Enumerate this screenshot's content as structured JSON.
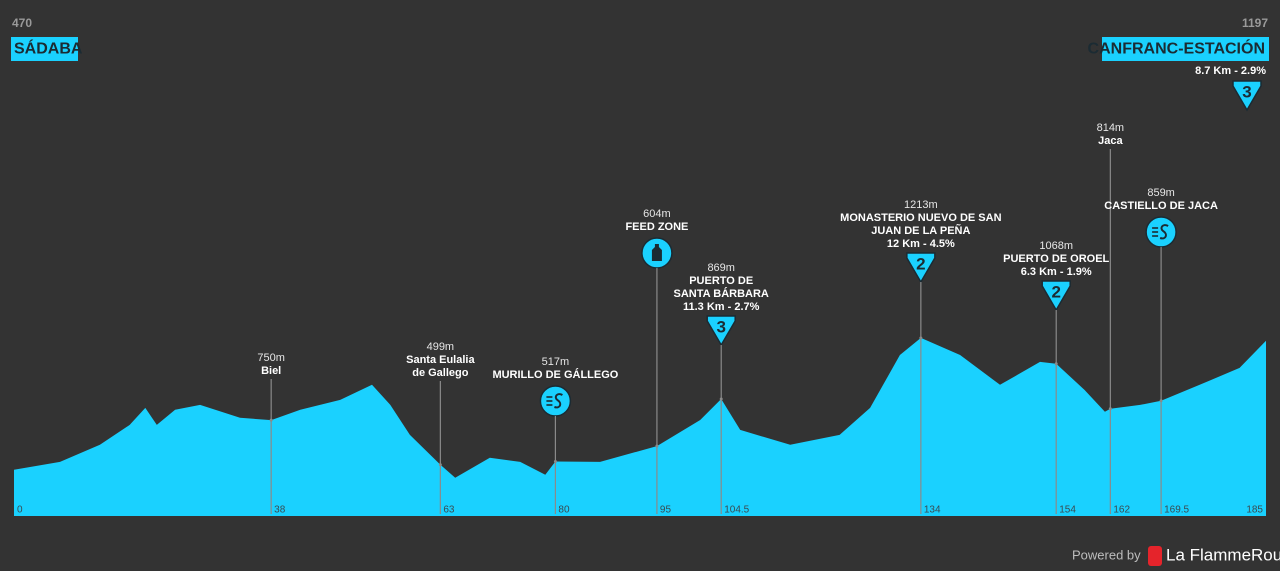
{
  "chart_data": {
    "type": "area",
    "color": "#1ad1ff",
    "start": {
      "altitude": 470,
      "name": "SÁDABA"
    },
    "finish": {
      "altitude": 1197,
      "name": "CANFRANC-ESTACIÓN",
      "climb": "8.7 Km - 2.9%",
      "category": 3
    },
    "x": [
      0,
      6.8,
      12.7,
      17.1,
      19.4,
      21.1,
      23.8,
      27.5,
      33.4,
      38,
      42.3,
      48.2,
      52.9,
      55.6,
      58.5,
      63,
      65.2,
      70.3,
      74.8,
      78.5,
      80,
      86.6,
      95,
      101.4,
      104.5,
      107.3,
      114.7,
      122,
      126.5,
      130.9,
      134,
      139.8,
      145.7,
      151.6,
      154,
      158.2,
      161.2,
      162,
      166.4,
      169.5,
      175.2,
      181.1,
      185
    ],
    "values": [
      470,
      515,
      611,
      723,
      819,
      723,
      808,
      836,
      763,
      750,
      808,
      864,
      949,
      836,
      667,
      499,
      425,
      538,
      515,
      442,
      517,
      515,
      604,
      751,
      869,
      695,
      611,
      667,
      819,
      1117,
      1213,
      1117,
      949,
      1078,
      1068,
      920,
      797,
      814,
      836,
      859,
      949,
      1044,
      1197
    ],
    "xlim": [
      0,
      185
    ],
    "ylim": [
      210,
      1500
    ],
    "xticks": [
      0,
      38,
      63,
      80,
      95,
      104.5,
      134,
      154,
      162,
      169.5,
      185
    ],
    "markers": [
      {
        "km": 38,
        "altitude": 750,
        "altitude_label": "750m",
        "name": [
          "Biel"
        ]
      },
      {
        "km": 63,
        "altitude": 499,
        "altitude_label": "499m",
        "name": [
          "Santa Eulalia",
          "de Gallego"
        ]
      },
      {
        "km": 80,
        "altitude": 517,
        "altitude_label": "517m",
        "name": [
          "MURILLO DE GÁLLEGO"
        ],
        "icon": "sprint"
      },
      {
        "km": 95,
        "altitude": 604,
        "altitude_label": "604m",
        "name": [
          "FEED ZONE"
        ],
        "icon": "feed"
      },
      {
        "km": 104.5,
        "altitude": 869,
        "altitude_label": "869m",
        "name": [
          "PUERTO DE",
          "SANTA BÁRBARA"
        ],
        "climb": "11.3 Km - 2.7%",
        "category": 3
      },
      {
        "km": 134,
        "altitude": 1213,
        "altitude_label": "1213m",
        "name": [
          "MONASTERIO NUEVO DE SAN",
          "JUAN DE LA PEÑA"
        ],
        "climb": "12 Km - 4.5%",
        "category": 2
      },
      {
        "km": 154,
        "altitude": 1068,
        "altitude_label": "1068m",
        "name": [
          "PUERTO DE OROEL"
        ],
        "climb": "6.3 Km - 1.9%",
        "category": 2
      },
      {
        "km": 162,
        "altitude": 814,
        "altitude_label": "814m",
        "name": [
          "Jaca"
        ]
      },
      {
        "km": 169.5,
        "altitude": 859,
        "altitude_label": "859m",
        "name": [
          "CASTIELLO DE JACA"
        ],
        "icon": "sprint"
      }
    ]
  },
  "footer": {
    "powered": "Powered by",
    "brand": "La FlammeRouge"
  }
}
